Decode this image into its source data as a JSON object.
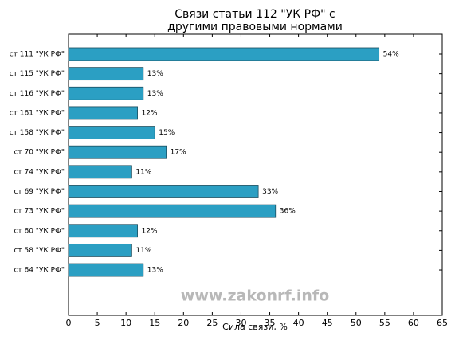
{
  "chart_data": {
    "type": "barh",
    "title": [
      "Связи статьи 112 \"УК РФ\" с",
      "другими правовыми нормами"
    ],
    "xlabel": "Сила связи, %",
    "watermark": "www.zakonrf.info",
    "categories": [
      "ст 111 \"УК РФ\"",
      "ст 115 \"УК РФ\"",
      "ст 116 \"УК РФ\"",
      "ст 161 \"УК РФ\"",
      "ст 158 \"УК РФ\"",
      "ст 70 \"УК РФ\"",
      "ст 74 \"УК РФ\"",
      "ст 69 \"УК РФ\"",
      "ст 73 \"УК РФ\"",
      "ст 60 \"УК РФ\"",
      "ст 58 \"УК РФ\"",
      "ст 64 \"УК РФ\""
    ],
    "values": [
      54,
      13,
      13,
      12,
      15,
      17,
      11,
      33,
      36,
      12,
      11,
      13
    ],
    "value_labels": [
      "54%",
      "13%",
      "13%",
      "12%",
      "15%",
      "17%",
      "11%",
      "33%",
      "36%",
      "12%",
      "11%",
      "13%"
    ],
    "color": "#2b9fc3",
    "xlim": [
      0,
      65
    ],
    "xticks": [
      0,
      5,
      10,
      15,
      20,
      25,
      30,
      35,
      40,
      45,
      50,
      55,
      60,
      65
    ]
  }
}
